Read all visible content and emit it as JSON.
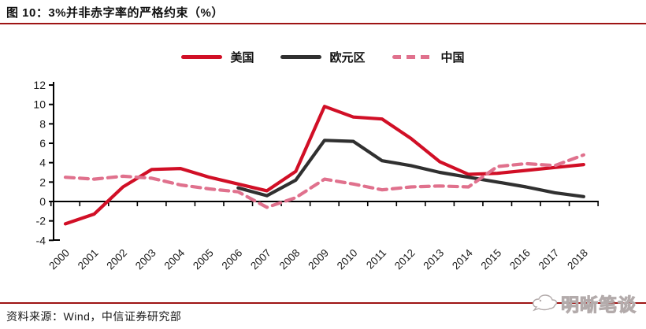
{
  "title": "图 10：3%并非赤字率的严格约束（%）",
  "source": "资料来源：Wind，中信证券研究部",
  "watermark": "明晰笔谈",
  "colors": {
    "rule_red": "#9e1414",
    "axis": "#000000",
    "us_red": "#d10f26",
    "euro_dark": "#303030",
    "china_pink": "#e0718d"
  },
  "legend": [
    {
      "label": "美国",
      "color": "#d10f26",
      "dashed": false
    },
    {
      "label": "欧元区",
      "color": "#303030",
      "dashed": false
    },
    {
      "label": "中国",
      "color": "#e0718d",
      "dashed": true
    }
  ],
  "chart_data": {
    "type": "line",
    "title": "3%并非赤字率的严格约束（%）",
    "xlabel": "",
    "ylabel": "",
    "ylim": [
      -4,
      12
    ],
    "yticks": [
      -4,
      -2,
      0,
      2,
      4,
      6,
      8,
      10,
      12
    ],
    "grid": false,
    "legend_position": "top",
    "categories": [
      "2000",
      "2001",
      "2002",
      "2003",
      "2004",
      "2005",
      "2006",
      "2007",
      "2008",
      "2009",
      "2010",
      "2011",
      "2012",
      "2013",
      "2014",
      "2015",
      "2016",
      "2017",
      "2018"
    ],
    "series": [
      {
        "name": "美国",
        "color": "#d10f26",
        "dashed": false,
        "values": [
          -2.3,
          -1.3,
          1.5,
          3.3,
          3.4,
          2.5,
          1.8,
          1.1,
          3.1,
          9.8,
          8.7,
          8.5,
          6.5,
          4.1,
          2.8,
          2.9,
          3.2,
          3.5,
          3.8
        ]
      },
      {
        "name": "欧元区",
        "color": "#303030",
        "dashed": false,
        "values": [
          null,
          null,
          null,
          null,
          null,
          null,
          1.4,
          0.6,
          2.2,
          6.3,
          6.2,
          4.2,
          3.7,
          3.0,
          2.5,
          2.0,
          1.5,
          0.9,
          0.5
        ]
      },
      {
        "name": "中国",
        "color": "#e0718d",
        "dashed": true,
        "values": [
          2.5,
          2.3,
          2.6,
          2.4,
          1.7,
          1.3,
          1.0,
          -0.6,
          0.4,
          2.3,
          1.8,
          1.2,
          1.5,
          1.6,
          1.5,
          3.6,
          3.9,
          3.7,
          4.8
        ]
      }
    ]
  }
}
